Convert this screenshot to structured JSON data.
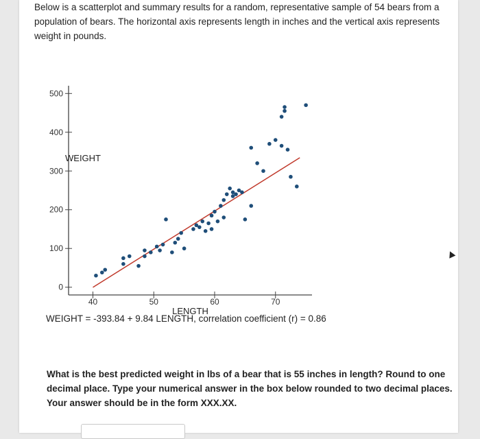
{
  "intro_text": "Below is a scatterplot and summary results for a random, representative sample of 54 bears from a population of bears. The horizontal axis represents length in inches and the vertical axis represents weight in pounds.",
  "regression_text": "WEIGHT = -393.84 + 9.84 LENGTH, correlation coefficient (r) = 0.864",
  "question_text": "What is the best predicted weight in lbs of a bear that is 55 inches in length? Round to one decimal place. Type your numerical answer in the box below rounded to two decimal places. Your answer should be in the form XXX.XX.",
  "answer": {
    "value": "",
    "placeholder": ""
  },
  "colors": {
    "point": "#1f4e79",
    "line": "#c0392b",
    "axis": "#444444"
  },
  "chart_data": {
    "type": "scatter",
    "title": "",
    "xlabel": "LENGTH",
    "ylabel": "WEIGHT",
    "xlim": [
      36,
      76
    ],
    "ylim": [
      -20,
      520
    ],
    "x_ticks": [
      40,
      50,
      60,
      70
    ],
    "y_ticks": [
      0,
      100,
      200,
      300,
      400,
      500
    ],
    "grid": false,
    "legend": "none",
    "regression_line": {
      "intercept": -393.84,
      "slope": 9.84,
      "x_range": [
        40,
        74
      ]
    },
    "points": [
      {
        "x": 40.5,
        "y": 30
      },
      {
        "x": 41.5,
        "y": 38
      },
      {
        "x": 42,
        "y": 45
      },
      {
        "x": 45,
        "y": 60
      },
      {
        "x": 45,
        "y": 75
      },
      {
        "x": 46,
        "y": 80
      },
      {
        "x": 47.5,
        "y": 55
      },
      {
        "x": 48.5,
        "y": 80
      },
      {
        "x": 48.5,
        "y": 95
      },
      {
        "x": 49.5,
        "y": 90
      },
      {
        "x": 50.5,
        "y": 105
      },
      {
        "x": 51,
        "y": 95
      },
      {
        "x": 51.5,
        "y": 110
      },
      {
        "x": 52,
        "y": 175
      },
      {
        "x": 53,
        "y": 90
      },
      {
        "x": 53.5,
        "y": 115
      },
      {
        "x": 54,
        "y": 125
      },
      {
        "x": 54.5,
        "y": 140
      },
      {
        "x": 55,
        "y": 100
      },
      {
        "x": 56.5,
        "y": 150
      },
      {
        "x": 57,
        "y": 160
      },
      {
        "x": 57.5,
        "y": 155
      },
      {
        "x": 58,
        "y": 170
      },
      {
        "x": 58.5,
        "y": 145
      },
      {
        "x": 59,
        "y": 165
      },
      {
        "x": 59.5,
        "y": 150
      },
      {
        "x": 59.5,
        "y": 185
      },
      {
        "x": 60,
        "y": 195
      },
      {
        "x": 60.5,
        "y": 170
      },
      {
        "x": 61,
        "y": 210
      },
      {
        "x": 61.5,
        "y": 180
      },
      {
        "x": 61.5,
        "y": 225
      },
      {
        "x": 62,
        "y": 240
      },
      {
        "x": 62.5,
        "y": 255
      },
      {
        "x": 63,
        "y": 235
      },
      {
        "x": 63,
        "y": 245
      },
      {
        "x": 63.5,
        "y": 240
      },
      {
        "x": 64,
        "y": 250
      },
      {
        "x": 64.5,
        "y": 245
      },
      {
        "x": 65,
        "y": 175
      },
      {
        "x": 66,
        "y": 360
      },
      {
        "x": 66,
        "y": 210
      },
      {
        "x": 67,
        "y": 320
      },
      {
        "x": 68,
        "y": 300
      },
      {
        "x": 69,
        "y": 370
      },
      {
        "x": 70,
        "y": 380
      },
      {
        "x": 71,
        "y": 365
      },
      {
        "x": 71,
        "y": 440
      },
      {
        "x": 71.5,
        "y": 455
      },
      {
        "x": 71.5,
        "y": 465
      },
      {
        "x": 72,
        "y": 355
      },
      {
        "x": 72.5,
        "y": 285
      },
      {
        "x": 73.5,
        "y": 260
      },
      {
        "x": 75,
        "y": 470
      }
    ]
  }
}
